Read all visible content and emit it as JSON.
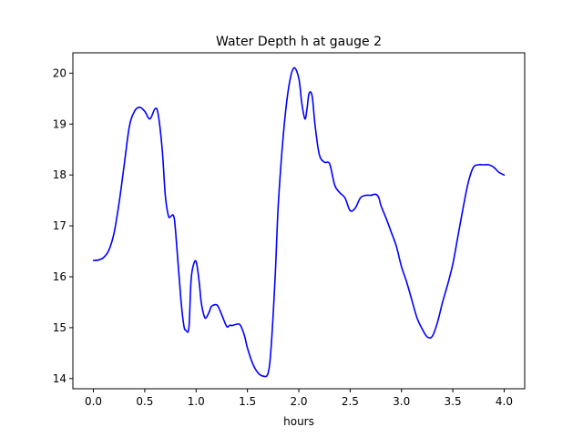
{
  "chart_data": {
    "type": "line",
    "title": "Water Depth h at gauge 2",
    "xlabel": "hours",
    "ylabel": "",
    "xlim": [
      -0.2,
      4.2
    ],
    "ylim": [
      13.8,
      20.4
    ],
    "xticks": [
      0.0,
      0.5,
      1.0,
      1.5,
      2.0,
      2.5,
      3.0,
      3.5,
      4.0
    ],
    "xtick_labels": [
      "0.0",
      "0.5",
      "1.0",
      "1.5",
      "2.0",
      "2.5",
      "3.0",
      "3.5",
      "4.0"
    ],
    "yticks": [
      14,
      15,
      16,
      17,
      18,
      19,
      20
    ],
    "ytick_labels": [
      "14",
      "15",
      "16",
      "17",
      "18",
      "19",
      "20"
    ],
    "grid": false,
    "series": [
      {
        "color": "#0000ff",
        "x": [
          0.0,
          0.05,
          0.1,
          0.15,
          0.2,
          0.25,
          0.3,
          0.35,
          0.4,
          0.45,
          0.5,
          0.55,
          0.6,
          0.63,
          0.67,
          0.7,
          0.73,
          0.75,
          0.78,
          0.8,
          0.85,
          0.88,
          0.9,
          0.93,
          0.95,
          0.97,
          1.0,
          1.03,
          1.05,
          1.08,
          1.1,
          1.13,
          1.15,
          1.2,
          1.23,
          1.26,
          1.3,
          1.33,
          1.35,
          1.4,
          1.43,
          1.47,
          1.5,
          1.55,
          1.6,
          1.65,
          1.7,
          1.73,
          1.77,
          1.8,
          1.85,
          1.9,
          1.95,
          2.0,
          2.03,
          2.06,
          2.08,
          2.1,
          2.13,
          2.16,
          2.2,
          2.25,
          2.3,
          2.35,
          2.4,
          2.45,
          2.5,
          2.55,
          2.6,
          2.65,
          2.7,
          2.75,
          2.78,
          2.8,
          2.85,
          2.9,
          2.95,
          3.0,
          3.05,
          3.1,
          3.15,
          3.2,
          3.25,
          3.3,
          3.35,
          3.4,
          3.45,
          3.5,
          3.55,
          3.6,
          3.65,
          3.7,
          3.75,
          3.8,
          3.85,
          3.9,
          3.95,
          4.0
        ],
        "y": [
          16.32,
          16.33,
          16.38,
          16.52,
          16.85,
          17.45,
          18.2,
          18.95,
          19.25,
          19.33,
          19.25,
          19.1,
          19.3,
          19.2,
          18.5,
          17.6,
          17.2,
          17.18,
          17.2,
          16.9,
          15.6,
          15.05,
          14.95,
          15.0,
          15.9,
          16.2,
          16.3,
          15.9,
          15.5,
          15.22,
          15.2,
          15.32,
          15.42,
          15.45,
          15.35,
          15.2,
          15.02,
          15.05,
          15.04,
          15.07,
          15.05,
          14.85,
          14.6,
          14.3,
          14.12,
          14.05,
          14.1,
          14.6,
          16.0,
          17.4,
          18.8,
          19.7,
          20.1,
          19.9,
          19.4,
          19.1,
          19.3,
          19.6,
          19.55,
          18.95,
          18.4,
          18.25,
          18.22,
          17.8,
          17.65,
          17.55,
          17.3,
          17.35,
          17.55,
          17.6,
          17.6,
          17.62,
          17.55,
          17.4,
          17.15,
          16.88,
          16.6,
          16.2,
          15.9,
          15.55,
          15.2,
          14.98,
          14.82,
          14.83,
          15.1,
          15.5,
          15.85,
          16.25,
          16.8,
          17.35,
          17.85,
          18.15,
          18.2,
          18.2,
          18.2,
          18.15,
          18.05,
          18.0
        ]
      }
    ]
  }
}
